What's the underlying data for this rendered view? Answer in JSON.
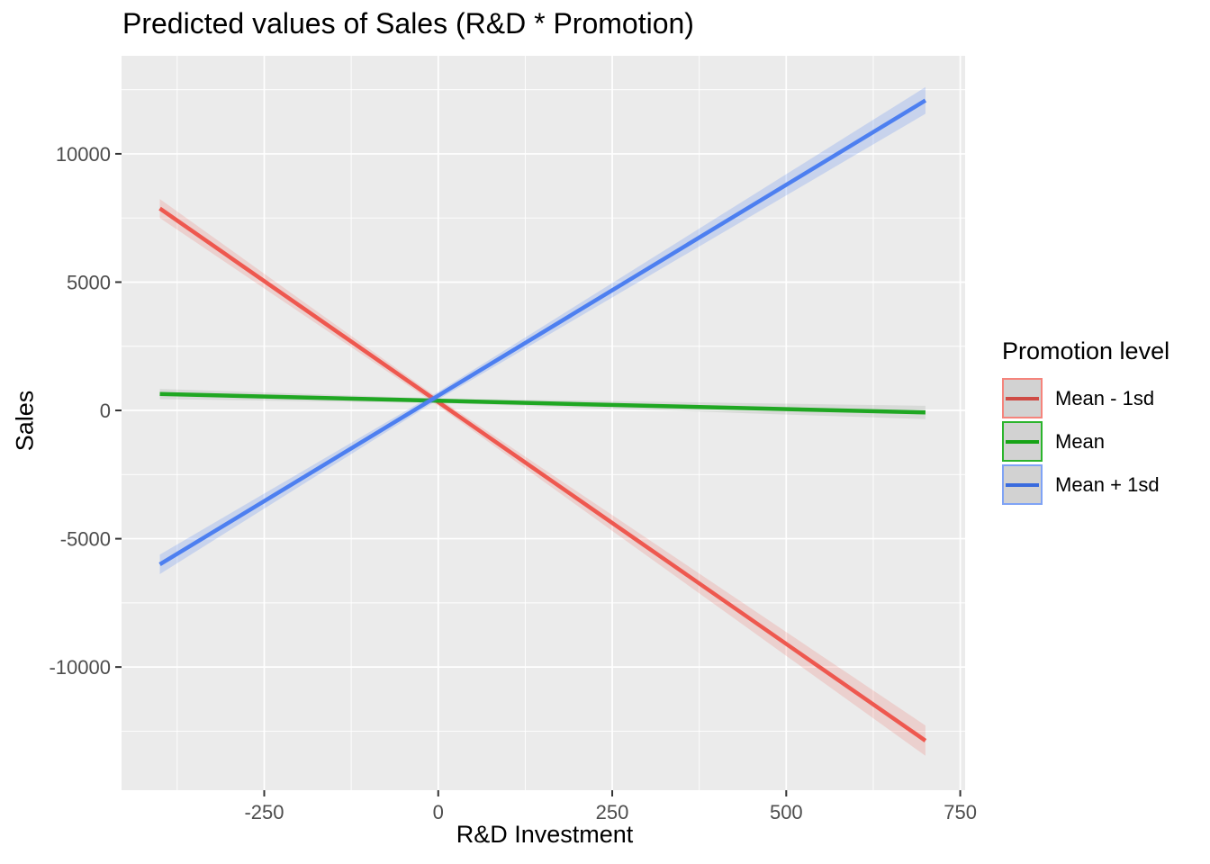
{
  "title": "Predicted values of Sales (R&D * Promotion)",
  "chart_data": {
    "type": "line",
    "title": "Predicted values of Sales (R&D * Promotion)",
    "xlabel": "R&D Investment",
    "ylabel": "Sales",
    "xlim": [
      -455,
      757
    ],
    "ylim": [
      -14800,
      13820
    ],
    "x_ticks": [
      -250,
      0,
      250,
      500,
      750
    ],
    "y_ticks": [
      -10000,
      -5000,
      0,
      5000,
      10000
    ],
    "x_minor_ticks": [
      -375,
      -125,
      125,
      375,
      625
    ],
    "y_minor_ticks": [
      -12500,
      -7500,
      -2500,
      2500,
      7500,
      12500
    ],
    "grid": true,
    "legend_position": "right",
    "legend_title": "Promotion level",
    "series": [
      {
        "name": "Mean - 1sd",
        "color": "#EE584F",
        "ribbon_color": "rgba(238,88,79,0.18)",
        "x": [
          -400,
          700
        ],
        "y": [
          7870,
          -12870
        ],
        "ribbon_halfwidth": {
          "x": [
            -400,
            0,
            700
          ],
          "h": [
            370,
            150,
            590
          ]
        }
      },
      {
        "name": "Mean",
        "color": "#1FA722",
        "ribbon_color": "rgba(90,110,90,0.13)",
        "x": [
          -400,
          700
        ],
        "y": [
          640,
          -80
        ],
        "ribbon_halfwidth": {
          "x": [
            -400,
            0,
            700
          ],
          "h": [
            200,
            90,
            260
          ]
        }
      },
      {
        "name": "Mean + 1sd",
        "color": "#4D7FF0",
        "ribbon_color": "rgba(77,127,240,0.22)",
        "x": [
          -400,
          700
        ],
        "y": [
          -6000,
          12080
        ],
        "ribbon_halfwidth": {
          "x": [
            -400,
            0,
            700
          ],
          "h": [
            380,
            150,
            520
          ]
        }
      }
    ]
  },
  "legend": {
    "title": "Promotion level",
    "items": [
      {
        "label": "Mean - 1sd",
        "line_color": "#CF4B45",
        "border_color": "#F5847C"
      },
      {
        "label": "Mean",
        "line_color": "#17A317",
        "border_color": "#2BB42C"
      },
      {
        "label": "Mean + 1sd",
        "line_color": "#3A6BDE",
        "border_color": "#7FA3F5"
      }
    ],
    "key_fill": "#D2D2D2"
  },
  "colors": {
    "panel_bg": "#EBEBEB",
    "grid_major": "#FFFFFF",
    "grid_minor": "#FFFFFF",
    "tick_mark": "#333333",
    "tick_label": "#4D4D4D",
    "text": "#000000"
  }
}
